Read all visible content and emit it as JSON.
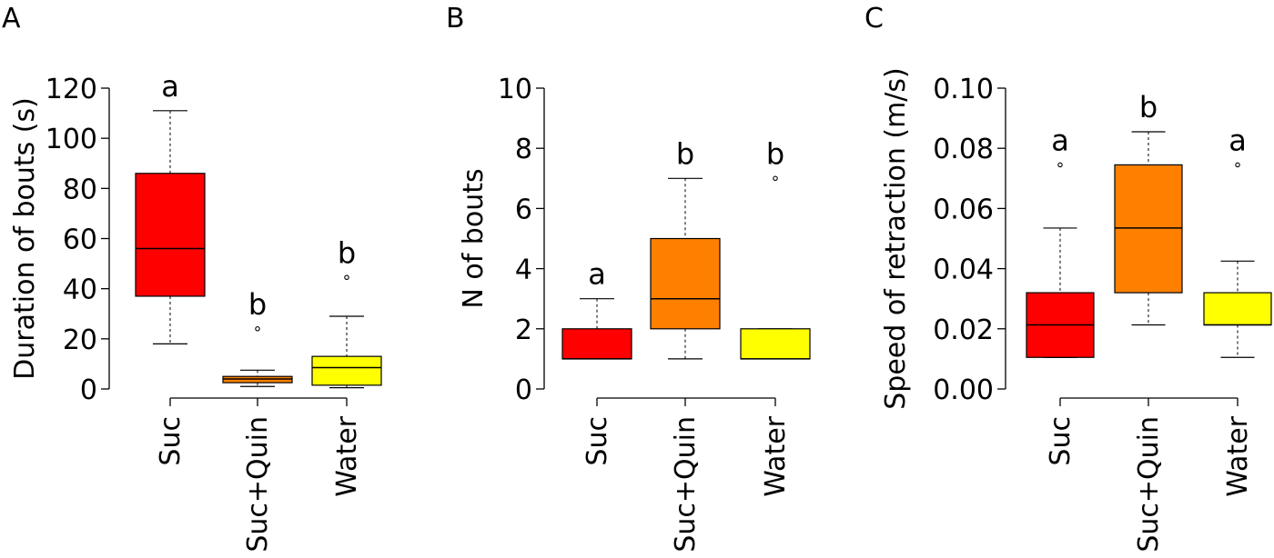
{
  "colors": {
    "Suc": "#ff0000",
    "Suc+Quin": "#ff8000",
    "Water": "#ffff00"
  },
  "chart_data": [
    {
      "panel": "A",
      "type": "box",
      "ylabel": "Duration of bouts (s)",
      "ylim": [
        0,
        120
      ],
      "yticks": [
        0,
        20,
        40,
        60,
        80,
        100,
        120
      ],
      "ytick_labels": [
        "0",
        "20",
        "40",
        "60",
        "80",
        "100",
        "120"
      ],
      "categories": [
        "Suc",
        "Suc+Quin",
        "Water"
      ],
      "boxes": [
        {
          "name": "Suc",
          "min": 18,
          "q1": 37,
          "median": 56,
          "q3": 86,
          "max": 111,
          "outliers": [],
          "sig": "a"
        },
        {
          "name": "Suc+Quin",
          "min": 1,
          "q1": 2.5,
          "median": 4,
          "q3": 5,
          "max": 7.5,
          "outliers": [
            24
          ],
          "sig": "b"
        },
        {
          "name": "Water",
          "min": 0.5,
          "q1": 1.5,
          "median": 8.5,
          "q3": 13,
          "max": 29,
          "outliers": [
            44.5
          ],
          "sig": "b"
        }
      ]
    },
    {
      "panel": "B",
      "type": "box",
      "ylabel": "N of bouts",
      "ylim": [
        0,
        10
      ],
      "yticks": [
        0,
        2,
        4,
        6,
        8,
        10
      ],
      "ytick_labels": [
        "0",
        "2",
        "4",
        "6",
        "8",
        "10"
      ],
      "categories": [
        "Suc",
        "Suc+Quin",
        "Water"
      ],
      "boxes": [
        {
          "name": "Suc",
          "min": 1,
          "q1": 1,
          "median": 1,
          "q3": 2,
          "max": 3,
          "outliers": [],
          "sig": "a"
        },
        {
          "name": "Suc+Quin",
          "min": 1,
          "q1": 2,
          "median": 3,
          "q3": 5,
          "max": 7,
          "outliers": [],
          "sig": "b"
        },
        {
          "name": "Water",
          "min": 1,
          "q1": 1,
          "median": 1,
          "q3": 2,
          "max": 2,
          "outliers": [
            7
          ],
          "sig": "b"
        }
      ]
    },
    {
      "panel": "C",
      "type": "box",
      "ylabel": "Speed of retraction (m/s)",
      "ylim": [
        0,
        0.1
      ],
      "yticks": [
        0,
        0.02,
        0.04,
        0.06,
        0.08,
        0.1
      ],
      "ytick_labels": [
        "0.00",
        "0.02",
        "0.04",
        "0.06",
        "0.08",
        "0.10"
      ],
      "categories": [
        "Suc",
        "Suc+Quin",
        "Water"
      ],
      "boxes": [
        {
          "name": "Suc",
          "min": 0.0105,
          "q1": 0.0105,
          "median": 0.0213,
          "q3": 0.032,
          "max": 0.0535,
          "outliers": [
            0.0745
          ],
          "sig": "a"
        },
        {
          "name": "Suc+Quin",
          "min": 0.0213,
          "q1": 0.032,
          "median": 0.0535,
          "q3": 0.0745,
          "max": 0.0855,
          "outliers": [],
          "sig": "b"
        },
        {
          "name": "Water",
          "min": 0.0105,
          "q1": 0.0213,
          "median": 0.0213,
          "q3": 0.032,
          "max": 0.0425,
          "outliers": [
            0.0745
          ],
          "sig": "a"
        }
      ]
    }
  ]
}
